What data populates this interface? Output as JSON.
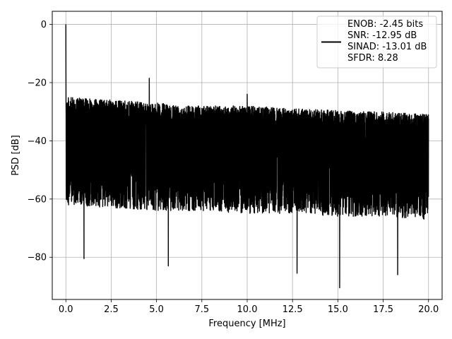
{
  "chart_data": {
    "type": "line",
    "xlabel": "Frequency [MHz]",
    "ylabel": "PSD [dB]",
    "xlim": [
      -0.75,
      20.75
    ],
    "ylim": [
      -94.5,
      4.5
    ],
    "x_ticks": [
      0.0,
      2.5,
      5.0,
      7.5,
      10.0,
      12.5,
      15.0,
      17.5,
      20.0
    ],
    "x_tick_labels": [
      "0.0",
      "2.5",
      "5.0",
      "7.5",
      "10.0",
      "12.5",
      "15.0",
      "17.5",
      "20.0"
    ],
    "y_ticks": [
      0,
      -20,
      -40,
      -60,
      -80
    ],
    "y_tick_labels": [
      "0",
      "−20",
      "−40",
      "−60",
      "−80"
    ],
    "grid": true,
    "legend_position": "top-right",
    "series": [
      {
        "name": "ENOB: -2.45 bits\nSNR: -12.95 dB\nSINAD: -13.01 dB\nSFDR: 8.28",
        "color": "#000000",
        "x_range": [
          0.0,
          20.0
        ],
        "noise_envelope": {
          "x": [
            0.0,
            2.5,
            5.0,
            7.5,
            10.0,
            12.5,
            15.0,
            17.5,
            20.0
          ],
          "upper": [
            -25,
            -26,
            -27,
            -28,
            -28,
            -29,
            -29.5,
            -30,
            -31
          ],
          "lower": [
            -62,
            -63,
            -64,
            -64,
            -65,
            -65,
            -66,
            -66,
            -67
          ]
        },
        "peaks": [
          {
            "x": 0.0,
            "y": 0
          },
          {
            "x": 4.6,
            "y": -18.5
          },
          {
            "x": 10.0,
            "y": -24
          }
        ],
        "dips": [
          {
            "x": 1.0,
            "y": -80.5
          },
          {
            "x": 5.65,
            "y": -83
          },
          {
            "x": 12.75,
            "y": -85.5
          },
          {
            "x": 15.1,
            "y": -90.5
          },
          {
            "x": 18.3,
            "y": -86
          }
        ]
      }
    ]
  }
}
